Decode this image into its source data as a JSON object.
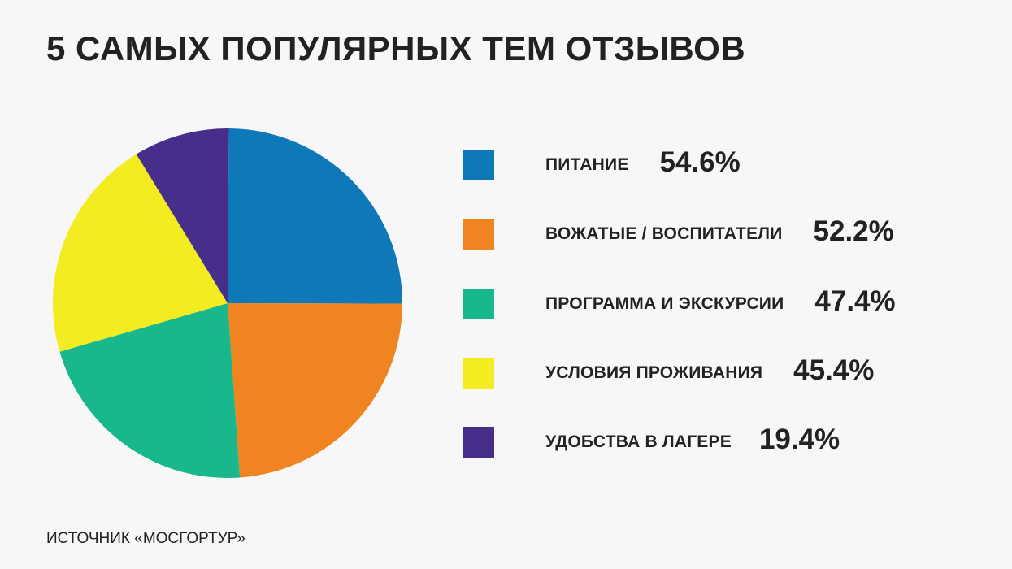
{
  "header": {
    "title": "5 САМЫХ ПОПУЛЯРНЫХ ТЕМ ОТЗЫВОВ"
  },
  "chart_data": {
    "type": "pie",
    "title": "5 САМЫХ ПОПУЛЯРНЫХ ТЕМ ОТЗЫВОВ",
    "legend_position": "right",
    "slices": [
      {
        "label": "ПИТАНИЕ",
        "value": 54.6,
        "display": "54.6%",
        "color": "#0e78b9"
      },
      {
        "label": "ВОЖАТЫЕ / ВОСПИТАТЕЛИ",
        "value": 52.2,
        "display": "52.2%",
        "color": "#ef8421"
      },
      {
        "label": "ПРОГРАММА И ЭКСКУРСИИ",
        "value": 47.4,
        "display": "47.4%",
        "color": "#18b78c"
      },
      {
        "label": "УСЛОВИЯ ПРОЖИВАНИЯ",
        "value": 45.4,
        "display": "45.4%",
        "color": "#f3ec21"
      },
      {
        "label": "УДОБСТВА В ЛАГЕРЕ",
        "value": 19.4,
        "display": "19.4%",
        "color": "#462e8a"
      }
    ]
  },
  "footer": {
    "source": "ИСТОЧНИК «МОСГОРТУР»"
  }
}
